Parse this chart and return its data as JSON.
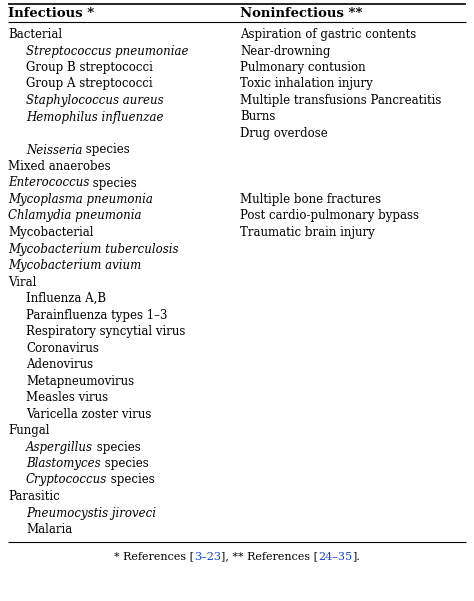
{
  "col1_header": "Infectious *",
  "col2_header": "Noninfectious **",
  "col1_items": [
    {
      "text": "Bacterial",
      "style": "normal",
      "indent": 0
    },
    {
      "text": "Streptococcus pneumoniae",
      "style": "italic",
      "indent": 1
    },
    {
      "text": "Group B streptococci",
      "style": "normal",
      "indent": 1
    },
    {
      "text": "Group A streptococci",
      "style": "normal",
      "indent": 1
    },
    {
      "text": "Staphylococcus aureus",
      "style": "italic",
      "indent": 1
    },
    {
      "text": "Hemophilus influenzae",
      "style": "italic",
      "indent": 1
    },
    {
      "text": "",
      "style": "normal",
      "indent": 0
    },
    {
      "text": "Neisseria",
      "style": "italic_species",
      "indent": 1,
      "extra": " species"
    },
    {
      "text": "Mixed anaerobes",
      "style": "normal",
      "indent": 0
    },
    {
      "text": "Enterococcus",
      "style": "italic_species",
      "indent": 0,
      "extra": " species"
    },
    {
      "text": "Mycoplasma pneumonia",
      "style": "italic",
      "indent": 0
    },
    {
      "text": "Chlamydia pneumonia",
      "style": "italic",
      "indent": 0
    },
    {
      "text": "Mycobacterial",
      "style": "normal",
      "indent": 0
    },
    {
      "text": "Mycobacterium tuberculosis",
      "style": "italic",
      "indent": 0
    },
    {
      "text": "Mycobacterium avium",
      "style": "italic",
      "indent": 0
    },
    {
      "text": "Viral",
      "style": "normal",
      "indent": 0
    },
    {
      "text": "Influenza A,B",
      "style": "normal",
      "indent": 1
    },
    {
      "text": "Parainfluenza types 1–3",
      "style": "normal",
      "indent": 1
    },
    {
      "text": "Respiratory syncytial virus",
      "style": "normal",
      "indent": 1
    },
    {
      "text": "Coronavirus",
      "style": "normal",
      "indent": 1
    },
    {
      "text": "Adenovirus",
      "style": "normal",
      "indent": 1
    },
    {
      "text": "Metapneumovirus",
      "style": "normal",
      "indent": 1
    },
    {
      "text": "Measles virus",
      "style": "normal",
      "indent": 1
    },
    {
      "text": "Varicella zoster virus",
      "style": "normal",
      "indent": 1
    },
    {
      "text": "Fungal",
      "style": "normal",
      "indent": 0
    },
    {
      "text": "Aspergillus",
      "style": "italic_species",
      "indent": 1,
      "extra": " species"
    },
    {
      "text": "Blastomyces",
      "style": "italic_species",
      "indent": 1,
      "extra": " species"
    },
    {
      "text": "Cryptococcus",
      "style": "italic_species",
      "indent": 1,
      "extra": " species"
    },
    {
      "text": "Parasitic",
      "style": "normal",
      "indent": 0
    },
    {
      "text": "Pneumocystis jiroveci",
      "style": "italic",
      "indent": 1
    },
    {
      "text": "Malaria",
      "style": "normal",
      "indent": 1
    }
  ],
  "col2_items": [
    {
      "text": "Aspiration of gastric contents",
      "row": 0
    },
    {
      "text": "Near-drowning",
      "row": 1
    },
    {
      "text": "Pulmonary contusion",
      "row": 2
    },
    {
      "text": "Toxic inhalation injury",
      "row": 3
    },
    {
      "text": "Multiple transfusions Pancreatitis",
      "row": 4
    },
    {
      "text": "Burns",
      "row": 5
    },
    {
      "text": "Drug overdose",
      "row": 6
    },
    {
      "text": "Multiple bone fractures",
      "row": 10
    },
    {
      "text": "Post cardio-pulmonary bypass",
      "row": 11
    },
    {
      "text": "Traumatic brain injury",
      "row": 12
    }
  ],
  "bg_color": "#ffffff",
  "text_color": "#000000",
  "link_color": "#1144cc"
}
